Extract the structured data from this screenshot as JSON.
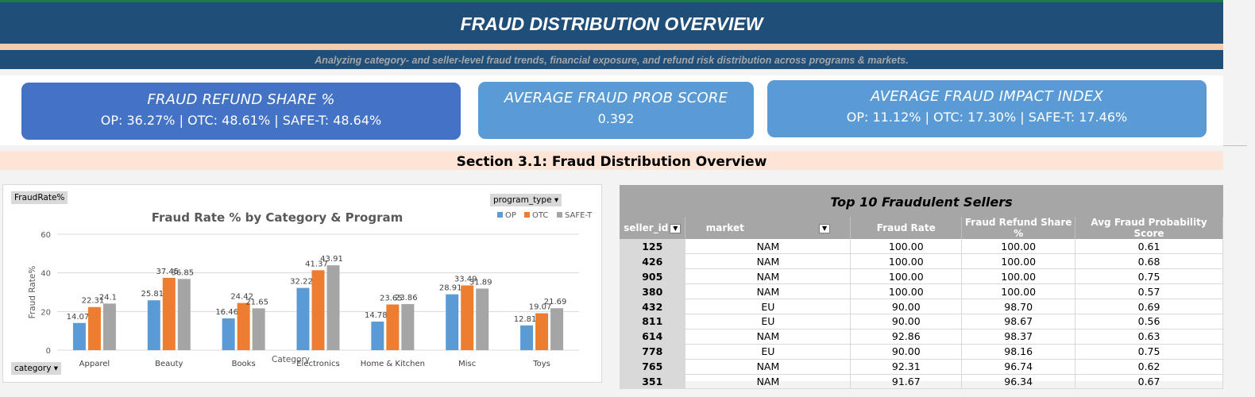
{
  "header": {
    "title": "FRAUD DISTRIBUTION OVERVIEW",
    "subtitle": "Analyzing category- and seller-level fraud trends, financial   exposure, and refund risk distribution across programs &  markets."
  },
  "kpis": [
    {
      "title": "FRAUD REFUND SHARE %",
      "value": "OP: 36.27% | OTC: 48.61% | SAFE-T: 48.64%"
    },
    {
      "title": "AVERAGE FRAUD PROB SCORE",
      "value": "0.392"
    },
    {
      "title": "AVERAGE FRAUD IMPACT INDEX",
      "value": "OP: 11.12% | OTC: 17.30% | SAFE-T: 17.46%"
    }
  ],
  "section_title": "Section 3.1: Fraud Distribution Overview",
  "chart_controls": {
    "value_field": "FraudRate%",
    "legend_field": "program_type",
    "axis_field": "category"
  },
  "chart_data": {
    "type": "bar",
    "title": "Fraud Rate % by Category & Program",
    "xlabel": "Category",
    "ylabel": "Fraud Rate%",
    "ylim": [
      0,
      60
    ],
    "yticks": [
      0,
      20,
      40,
      60
    ],
    "grid": true,
    "legend_position": "top-right",
    "categories": [
      "Apparel",
      "Beauty",
      "Books",
      "Electronics",
      "Home & Kitchen",
      "Misc",
      "Toys"
    ],
    "series": [
      {
        "name": "OP",
        "color": "#5b9bd5",
        "values": [
          14.07,
          25.81,
          16.46,
          32.22,
          14.78,
          28.91,
          12.81
        ]
      },
      {
        "name": "OTC",
        "color": "#ed7d31",
        "values": [
          22.31,
          37.45,
          24.42,
          41.37,
          23.65,
          33.49,
          19.07
        ]
      },
      {
        "name": "SAFE-T",
        "color": "#a5a5a5",
        "values": [
          24.1,
          36.85,
          21.65,
          43.91,
          23.86,
          31.89,
          21.69
        ]
      }
    ]
  },
  "sellers_table": {
    "title": "Top 10 Fraudulent Sellers",
    "columns": [
      "seller_id",
      "market",
      "Fraud Rate",
      "Fraud Refund Share %",
      "Avg Fraud Probability Score"
    ],
    "header_seller": "seller_id",
    "rows": [
      [
        "125",
        "NAM",
        "100.00",
        "100.00",
        "0.61"
      ],
      [
        "426",
        "NAM",
        "100.00",
        "100.00",
        "0.68"
      ],
      [
        "905",
        "NAM",
        "100.00",
        "100.00",
        "0.75"
      ],
      [
        "380",
        "NAM",
        "100.00",
        "100.00",
        "0.57"
      ],
      [
        "432",
        "EU",
        "90.00",
        "98.70",
        "0.69"
      ],
      [
        "811",
        "EU",
        "90.00",
        "98.67",
        "0.56"
      ],
      [
        "614",
        "NAM",
        "92.86",
        "98.37",
        "0.63"
      ],
      [
        "778",
        "EU",
        "90.00",
        "98.16",
        "0.75"
      ],
      [
        "765",
        "NAM",
        "92.31",
        "96.74",
        "0.62"
      ],
      [
        "351",
        "NAM",
        "91.67",
        "96.34",
        "0.67"
      ]
    ]
  }
}
